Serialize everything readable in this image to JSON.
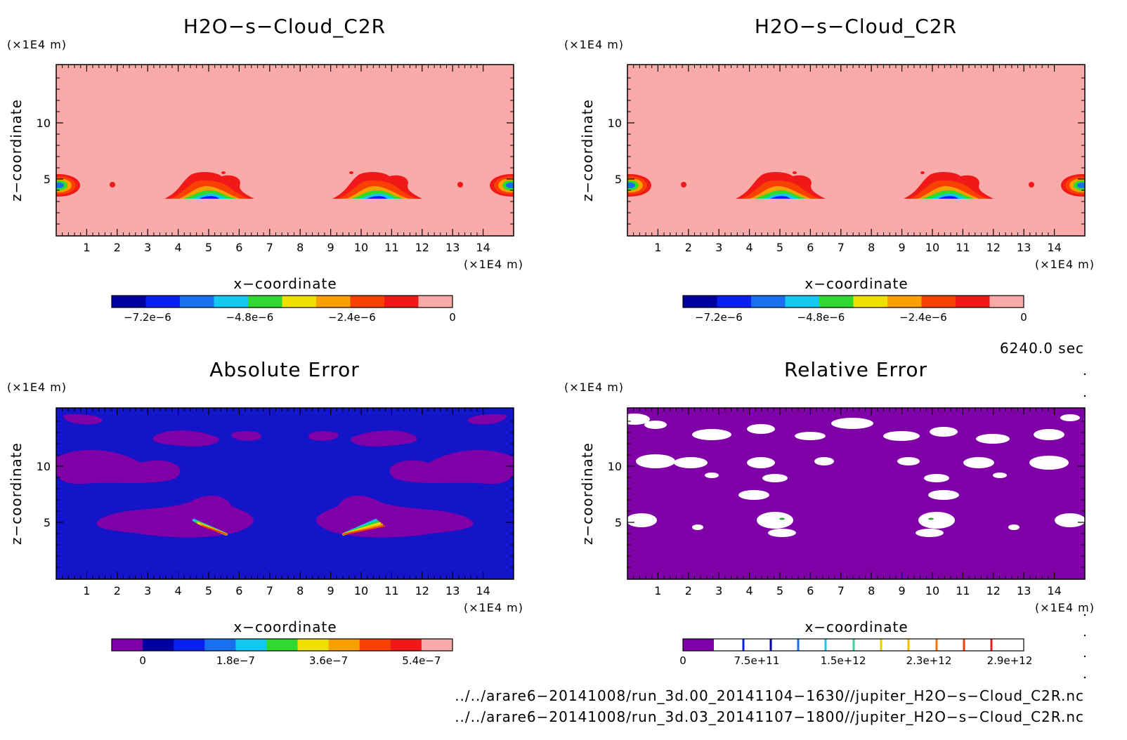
{
  "panels": {
    "p1": {
      "title": "H2O−s−Cloud_C2R",
      "yunit": "(×1E4 m)",
      "xunit": "(×1E4 m)",
      "ylabel": "z−coordinate",
      "xlabel": "x−coordinate",
      "colorbar_labels": [
        "−7.2e−6",
        "−4.8e−6",
        "−2.4e−6",
        "0"
      ]
    },
    "p2": {
      "title": "H2O−s−Cloud_C2R",
      "yunit": "(×1E4 m)",
      "xunit": "(×1E4 m)",
      "ylabel": "z−coordinate",
      "xlabel": "x−coordinate",
      "colorbar_labels": [
        "−7.2e−6",
        "−4.8e−6",
        "−2.4e−6",
        "0"
      ]
    },
    "p3": {
      "title": "Absolute Error",
      "yunit": "(×1E4 m)",
      "xunit": "(×1E4 m)",
      "ylabel": "z−coordinate",
      "xlabel": "x−coordinate",
      "colorbar_labels": [
        "0",
        "1.8e−7",
        "3.6e−7",
        "5.4e−7"
      ]
    },
    "p4": {
      "title": "Relative Error",
      "yunit": "(×1E4 m)",
      "xunit": "(×1E4 m)",
      "ylabel": "z−coordinate",
      "xlabel": "x−coordinate",
      "colorbar_labels": [
        "0",
        "7.5e+11",
        "1.5e+12",
        "2.3e+12",
        "2.9e+12"
      ]
    }
  },
  "time_label": "6240.0 sec",
  "files": [
    "../../arare6−20141008/run_3d.00_20141104−1630//jupiter_H2O−s−Cloud_C2R.nc",
    "../../arare6−20141008/run_3d.03_20141107−1800//jupiter_H2O−s−Cloud_C2R.nc"
  ],
  "colors": {
    "background_top": "#fbaaaa",
    "background_abs": "#1414c8",
    "purple": "#8000a8",
    "palette_top": [
      "#0000a0",
      "#0a20f0",
      "#1870f0",
      "#10c8f0",
      "#30d830",
      "#f0e000",
      "#f8a000",
      "#f84000",
      "#f01818",
      "#fbaaaa"
    ],
    "palette_abs": [
      "#8000a8",
      "#0000a0",
      "#0a20f0",
      "#1870f0",
      "#10c8f0",
      "#30d830",
      "#f0e000",
      "#f8a000",
      "#f84000",
      "#f01818",
      "#fbaaaa"
    ]
  },
  "chart_data": [
    {
      "type": "heatmap",
      "title": "H2O−s−Cloud_C2R",
      "xlabel": "x−coordinate",
      "ylabel": "z−coordinate",
      "x_unit": "(×1E4 m)",
      "y_unit": "(×1E4 m)",
      "xlim": [
        0,
        15
      ],
      "ylim": [
        0,
        15
      ],
      "x_ticks": [
        1,
        2,
        3,
        4,
        5,
        6,
        7,
        8,
        9,
        10,
        11,
        12,
        13,
        14
      ],
      "y_ticks": [
        5,
        10
      ],
      "colorbar_ticks": [
        -7.2e-06,
        -4.8e-06,
        -2.4e-06,
        0
      ],
      "features": [
        {
          "x": 0.3,
          "z": 4.4,
          "min_value": -7.2e-06
        },
        {
          "x": 5.0,
          "z": 4.1,
          "min_value": -7.2e-06
        },
        {
          "x": 10.4,
          "z": 4.1,
          "min_value": -7.2e-06
        },
        {
          "x": 14.8,
          "z": 4.4,
          "min_value": -7.2e-06
        }
      ]
    },
    {
      "type": "heatmap",
      "title": "H2O−s−Cloud_C2R",
      "xlabel": "x−coordinate",
      "ylabel": "z−coordinate",
      "xlim": [
        0,
        15
      ],
      "ylim": [
        0,
        15
      ],
      "x_ticks": [
        1,
        2,
        3,
        4,
        5,
        6,
        7,
        8,
        9,
        10,
        11,
        12,
        13,
        14
      ],
      "y_ticks": [
        5,
        10
      ],
      "colorbar_ticks": [
        -7.2e-06,
        -4.8e-06,
        -2.4e-06,
        0
      ]
    },
    {
      "type": "heatmap",
      "title": "Absolute Error",
      "xlabel": "x−coordinate",
      "ylabel": "z−coordinate",
      "xlim": [
        0,
        15
      ],
      "ylim": [
        0,
        15
      ],
      "x_ticks": [
        1,
        2,
        3,
        4,
        5,
        6,
        7,
        8,
        9,
        10,
        11,
        12,
        13,
        14
      ],
      "y_ticks": [
        5,
        10
      ],
      "colorbar_ticks": [
        0,
        1.8e-07,
        3.6e-07,
        5.4e-07
      ]
    },
    {
      "type": "heatmap",
      "title": "Relative Error",
      "xlabel": "x−coordinate",
      "ylabel": "z−coordinate",
      "xlim": [
        0,
        15
      ],
      "ylim": [
        0,
        15
      ],
      "x_ticks": [
        1,
        2,
        3,
        4,
        5,
        6,
        7,
        8,
        9,
        10,
        11,
        12,
        13,
        14
      ],
      "y_ticks": [
        5,
        10
      ],
      "colorbar_ticks": [
        0,
        750000000000.0,
        1500000000000.0,
        2300000000000.0,
        2900000000000.0
      ]
    }
  ]
}
